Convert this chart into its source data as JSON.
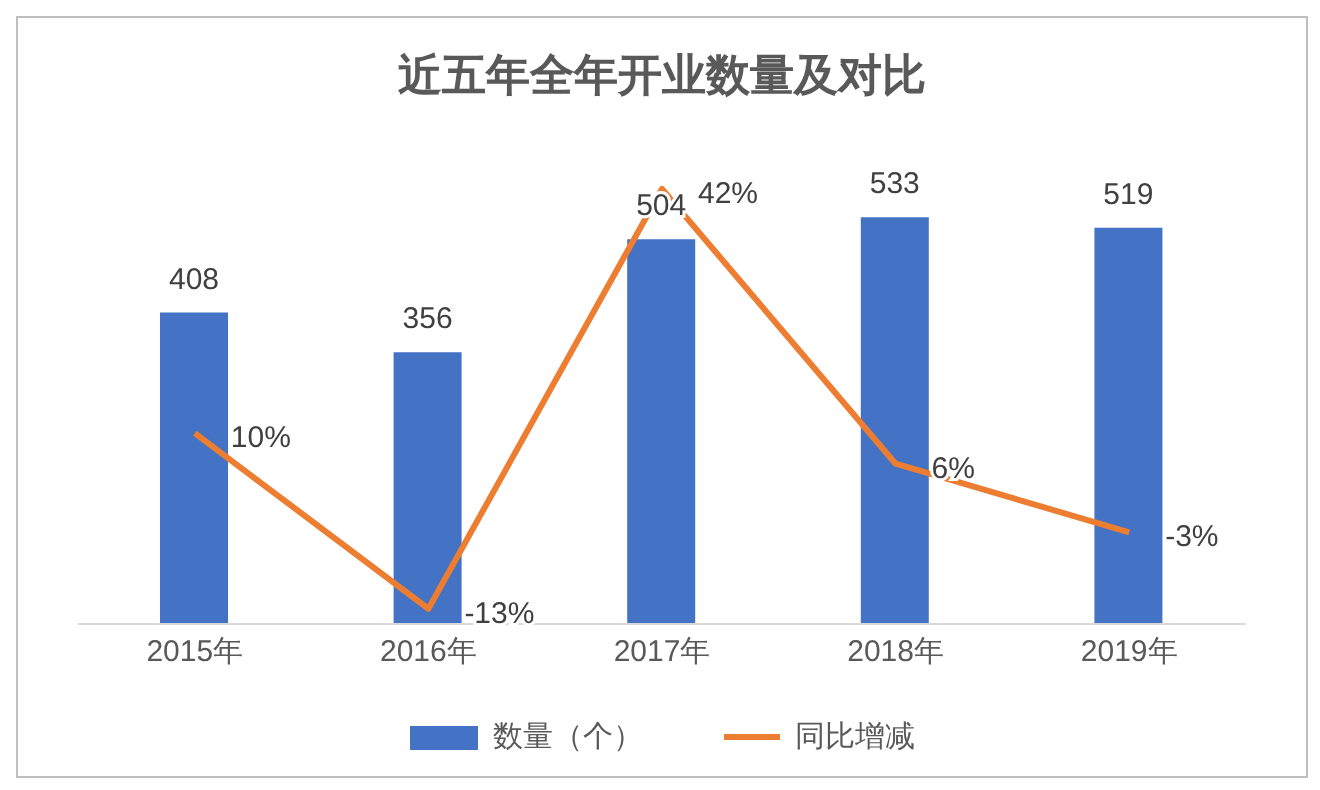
{
  "chart_data": {
    "type": "bar",
    "title": "近五年全年开业数量及对比",
    "categories": [
      "2015年",
      "2016年",
      "2017年",
      "2018年",
      "2019年"
    ],
    "series": [
      {
        "name": "数量（个）",
        "color": "#4472c4",
        "values": [
          408,
          356,
          504,
          533,
          519
        ],
        "value_labels": [
          "408",
          "356",
          "504",
          "533",
          "519"
        ]
      },
      {
        "name": "同比增减",
        "type": "line",
        "axis": "y2",
        "color": "#ed7d31",
        "values": [
          10,
          -13,
          42,
          6,
          -3
        ],
        "value_labels": [
          "10%",
          "-13%",
          "42%",
          "6%",
          "-3%"
        ]
      }
    ],
    "tick_labels": "x",
    "legend": "bottom",
    "marker": "none",
    "line_style": "solid"
  }
}
